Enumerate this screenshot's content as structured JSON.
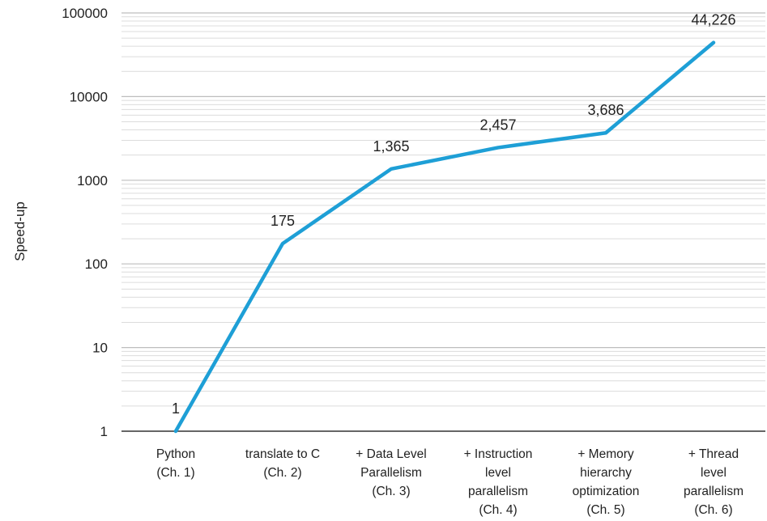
{
  "chart_data": {
    "type": "line",
    "title": "",
    "xlabel": "",
    "ylabel": "Speed-up",
    "yscale": "log",
    "ylim": [
      1,
      100000
    ],
    "yticks": [
      1,
      10,
      100,
      1000,
      10000,
      100000
    ],
    "ytick_labels": [
      "1",
      "10",
      "100",
      "1000",
      "10000",
      "100000"
    ],
    "grid": "horizontal minor and major lines",
    "legend": "none",
    "categories": [
      [
        "Python",
        "(Ch. 1)"
      ],
      [
        "translate to C",
        "(Ch. 2)"
      ],
      [
        "+ Data Level",
        "Parallelism",
        "(Ch. 3)"
      ],
      [
        "+ Instruction",
        "level",
        "parallelism",
        "(Ch. 4)"
      ],
      [
        "+ Memory",
        "hierarchy",
        "optimization",
        "(Ch. 5)"
      ],
      [
        "+ Thread",
        "level",
        "parallelism",
        "(Ch. 6)"
      ]
    ],
    "series": [
      {
        "values": [
          1,
          175,
          1365,
          2457,
          3686,
          44226
        ],
        "data_labels": [
          "1",
          "175",
          "1,365",
          "2,457",
          "3,686",
          "44,226"
        ],
        "color": "#1e9fd6"
      }
    ]
  }
}
